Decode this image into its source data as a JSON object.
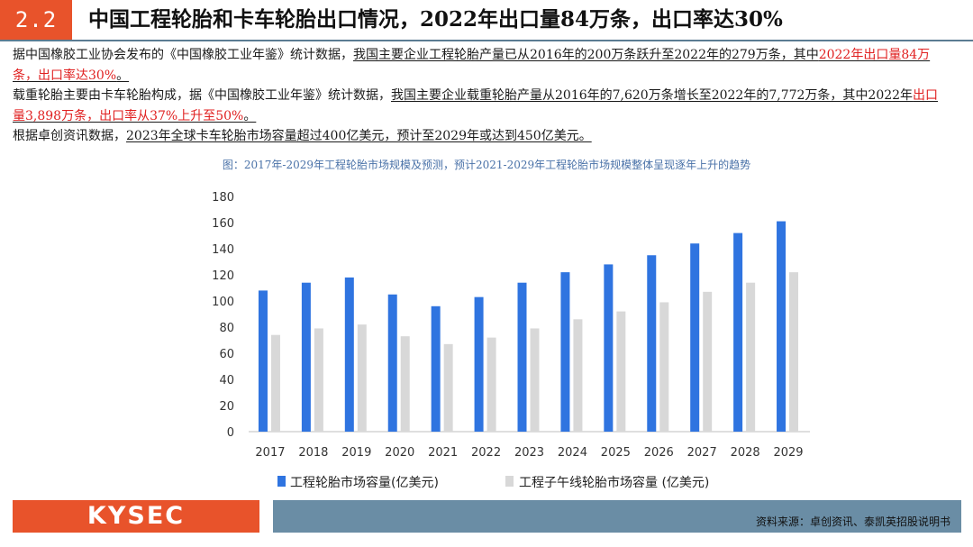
{
  "header": {
    "section_number": "2.2",
    "title": "中国工程轮胎和卡车轮胎出口情况，2022年出口量84万条，出口率达30%"
  },
  "paragraphs": {
    "p1_a": "据中国橡胶工业协会发布的《中国橡胶工业年鉴》统计数据，",
    "p1_b": "我国主要企业工程轮胎产量已从2016年的200万条跃升至2022年的279万条，其中",
    "p1_c": "2022年出口量84万条，出口率达30%",
    "p1_d": "。",
    "p2_a": "载重轮胎主要由卡车轮胎构成，据《中国橡胶工业年鉴》统计数据，",
    "p2_b": "我国主要企业载重轮胎产量从2016年的7,620万条增长至2022年的7,772万条，其中2022年",
    "p2_c": "出口量3,898万条，出口率从37%上升至50%",
    "p2_d": "。",
    "p3_a": "根据卓创资讯数据，",
    "p3_b": "2023年全球卡车轮胎市场容量超过400亿美元，预计至2029年或达到450亿美元。"
  },
  "chart_caption": "图：2017年-2029年工程轮胎市场规模及预测，预计2021-2029年工程轮胎市场规模整体呈现逐年上升的趋势",
  "chart_data": {
    "type": "bar",
    "categories": [
      "2017",
      "2018",
      "2019",
      "2020",
      "2021",
      "2022",
      "2023",
      "2024",
      "2025",
      "2026",
      "2027",
      "2028",
      "2029"
    ],
    "series": [
      {
        "name": "工程轮胎市场容量(亿美元)",
        "values": [
          108,
          114,
          118,
          105,
          96,
          103,
          114,
          122,
          128,
          135,
          144,
          152,
          161
        ],
        "color": "#2f74e0"
      },
      {
        "name": "工程子午线轮胎市场容量 (亿美元)",
        "values": [
          74,
          79,
          82,
          73,
          67,
          72,
          79,
          86,
          92,
          99,
          107,
          114,
          122
        ],
        "color": "#d8d8d8"
      }
    ],
    "ylim": [
      0,
      180
    ],
    "yticks": [
      0,
      20,
      40,
      60,
      80,
      100,
      120,
      140,
      160,
      180
    ],
    "grid": false,
    "legend_position": "bottom",
    "title": "",
    "xlabel": "",
    "ylabel": ""
  },
  "footer": {
    "logo_text": "KYSEC",
    "source": "资料来源：卓创资讯、泰凯英招股说明书"
  }
}
